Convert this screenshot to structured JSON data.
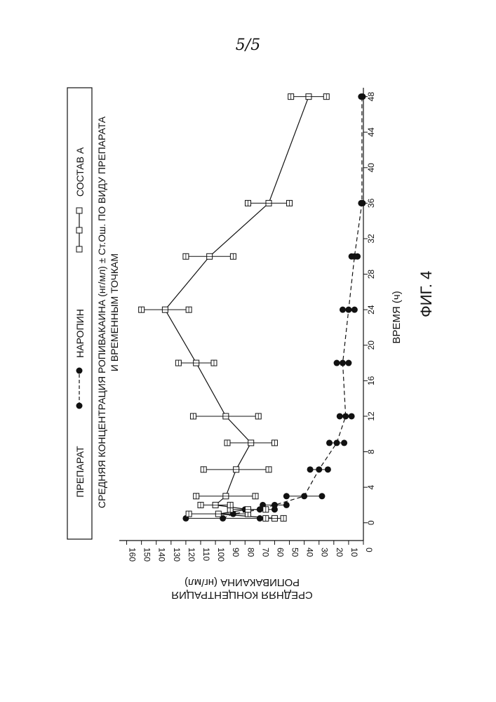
{
  "page_number": "5/5",
  "figure_label": "ФИГ. 4",
  "chart_data": {
    "type": "line",
    "title_lines": [
      "СРЕДНЯЯ КОНЦЕНТРАЦИЯ РОПИВАКАИНА (нг/мл) ± Ст.Ош. ПО ВИДУ ПРЕПАРАТА",
      "И ВРЕМЕННЫМ ТОЧКАМ"
    ],
    "xlabel": "ВРЕМЯ (ч)",
    "ylabel_lines": [
      "СРЕДНЯЯ КОНЦЕНТРАЦИЯ",
      "РОПИВАКАИНА (нг/мл)"
    ],
    "xlim": [
      -2,
      49
    ],
    "ylim": [
      0,
      165
    ],
    "x_ticks": [
      0,
      4,
      8,
      12,
      16,
      20,
      24,
      28,
      32,
      36,
      40,
      44,
      48
    ],
    "y_ticks": [
      0,
      10,
      20,
      30,
      40,
      50,
      60,
      70,
      80,
      90,
      100,
      110,
      120,
      130,
      140,
      150,
      160
    ],
    "x_tick_labels": [
      "0",
      "4",
      "8",
      "12",
      "16",
      "20",
      "24",
      "28",
      "32",
      "36",
      "40",
      "44",
      "48"
    ],
    "y_tick_labels": [
      "0",
      "10",
      "20",
      "30",
      "40",
      "50",
      "60",
      "70",
      "80",
      "90",
      "100",
      "110",
      "120",
      "130",
      "140",
      "150",
      "160"
    ],
    "legend": {
      "position": "top",
      "title": "ПРЕПАРАТ",
      "entries": [
        "НАРОПИН",
        "СОСТАВ А"
      ]
    },
    "series": [
      {
        "name": "НАРОПИН",
        "marker": "filled-circle",
        "line": "dashed",
        "x": [
          0.5,
          1,
          1.5,
          2,
          3,
          6,
          9,
          12,
          18,
          24,
          30,
          36,
          48
        ],
        "y": [
          95,
          88,
          70,
          60,
          40,
          30,
          18,
          12,
          14,
          10,
          6,
          1,
          1
        ],
        "err": [
          25,
          10,
          10,
          8,
          12,
          6,
          5,
          4,
          4,
          4,
          2,
          0.5,
          0.5
        ]
      },
      {
        "name": "СОСТАВ А",
        "marker": "boxed-square",
        "line": "solid",
        "x": [
          0.5,
          1,
          1.5,
          2,
          3,
          6,
          9,
          12,
          18,
          24,
          30,
          36,
          48
        ],
        "y": [
          60,
          98,
          78,
          100,
          93,
          86,
          76,
          93,
          113,
          134,
          104,
          64,
          37
        ],
        "err": [
          6,
          20,
          12,
          10,
          20,
          22,
          16,
          22,
          12,
          16,
          16,
          14,
          12
        ]
      }
    ]
  }
}
